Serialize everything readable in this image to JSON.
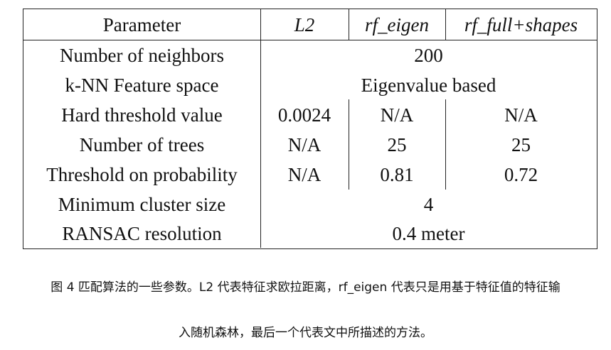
{
  "table": {
    "headers": [
      "Parameter",
      "L2",
      "rf_eigen",
      "rf_full+shapes"
    ],
    "rows": [
      {
        "param": "Number of neighbors",
        "span": "200"
      },
      {
        "param": "k-NN Feature space",
        "span": "Eigenvalue based"
      },
      {
        "param": "Hard threshold value",
        "l2": "0.0024",
        "rf_eigen": "N/A",
        "rf_full": "N/A"
      },
      {
        "param": "Number of trees",
        "l2": "N/A",
        "rf_eigen": "25",
        "rf_full": "25"
      },
      {
        "param": "Threshold on probability",
        "l2": "N/A",
        "rf_eigen": "0.81",
        "rf_full": "0.72"
      },
      {
        "param": "Minimum cluster size",
        "span": "4"
      },
      {
        "param": "RANSAC resolution",
        "span": "0.4 meter"
      }
    ]
  },
  "caption": {
    "line1": "图 4 匹配算法的一些参数。L2 代表特征求欧拉距离，rf_eigen 代表只是用基于特征值的特征输",
    "line2": "入随机森林，最后一个代表文中所描述的方法。"
  }
}
